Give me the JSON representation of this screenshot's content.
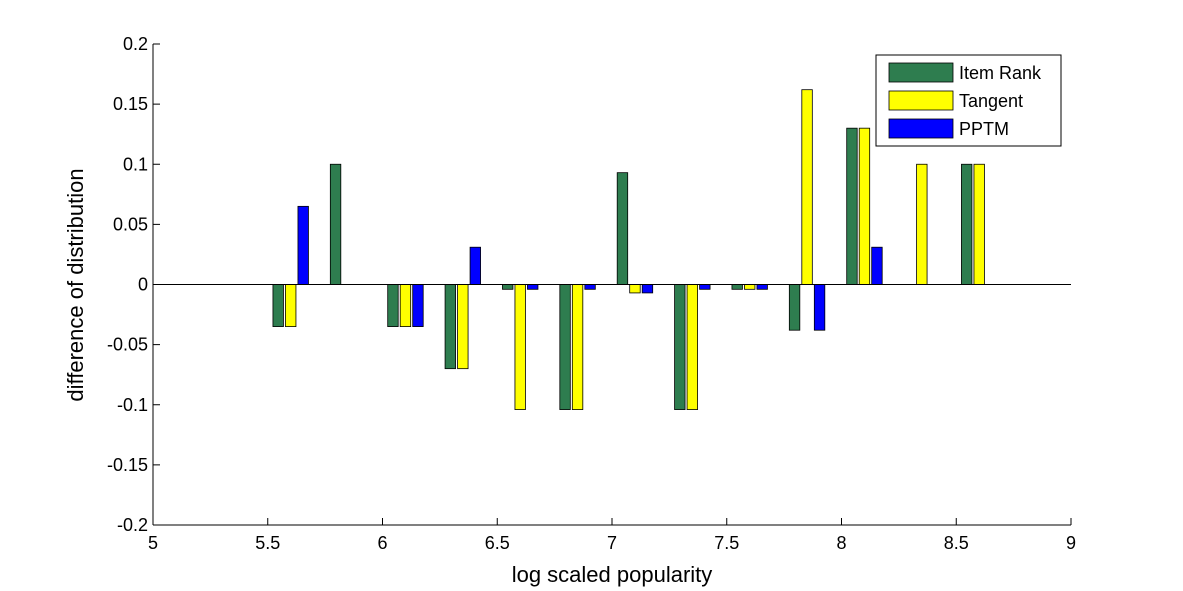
{
  "chart_data": {
    "type": "bar",
    "title": "",
    "xlabel": "log scaled popularity",
    "ylabel": "difference of distribution",
    "xlim": [
      5,
      9
    ],
    "ylim": [
      -0.2,
      0.2
    ],
    "xticks": [
      "5",
      "5.5",
      "6",
      "6.5",
      "7",
      "7.5",
      "8",
      "8.5",
      "9"
    ],
    "yticks": [
      "-0.2",
      "-0.15",
      "-0.1",
      "-0.05",
      "0",
      "0.05",
      "0.1",
      "0.15",
      "0.2"
    ],
    "x": [
      5.1,
      5.35,
      5.6,
      5.85,
      6.1,
      6.35,
      6.6,
      6.85,
      7.1,
      7.35,
      7.6,
      7.85,
      8.1,
      8.35,
      8.6,
      8.85
    ],
    "series": [
      {
        "name": "Item Rank",
        "color": "#2e7d4f",
        "values": [
          0,
          0,
          -0.035,
          0.1,
          -0.035,
          -0.07,
          -0.004,
          -0.104,
          0.093,
          -0.104,
          -0.004,
          -0.038,
          0.13,
          0,
          0.1,
          0
        ]
      },
      {
        "name": "Tangent",
        "color": "#ffff00",
        "values": [
          0,
          0,
          -0.035,
          0,
          -0.035,
          -0.07,
          -0.104,
          -0.104,
          -0.007,
          -0.104,
          -0.004,
          0.162,
          0.13,
          0.1,
          0.1,
          0
        ]
      },
      {
        "name": "PPTM",
        "color": "#0000ff",
        "values": [
          0,
          0,
          0.065,
          0,
          -0.035,
          0.031,
          -0.004,
          -0.004,
          -0.007,
          -0.004,
          -0.004,
          -0.038,
          0.031,
          0,
          0,
          0
        ]
      }
    ],
    "grid": false,
    "legend_position": "top-right",
    "zero_line": true
  }
}
